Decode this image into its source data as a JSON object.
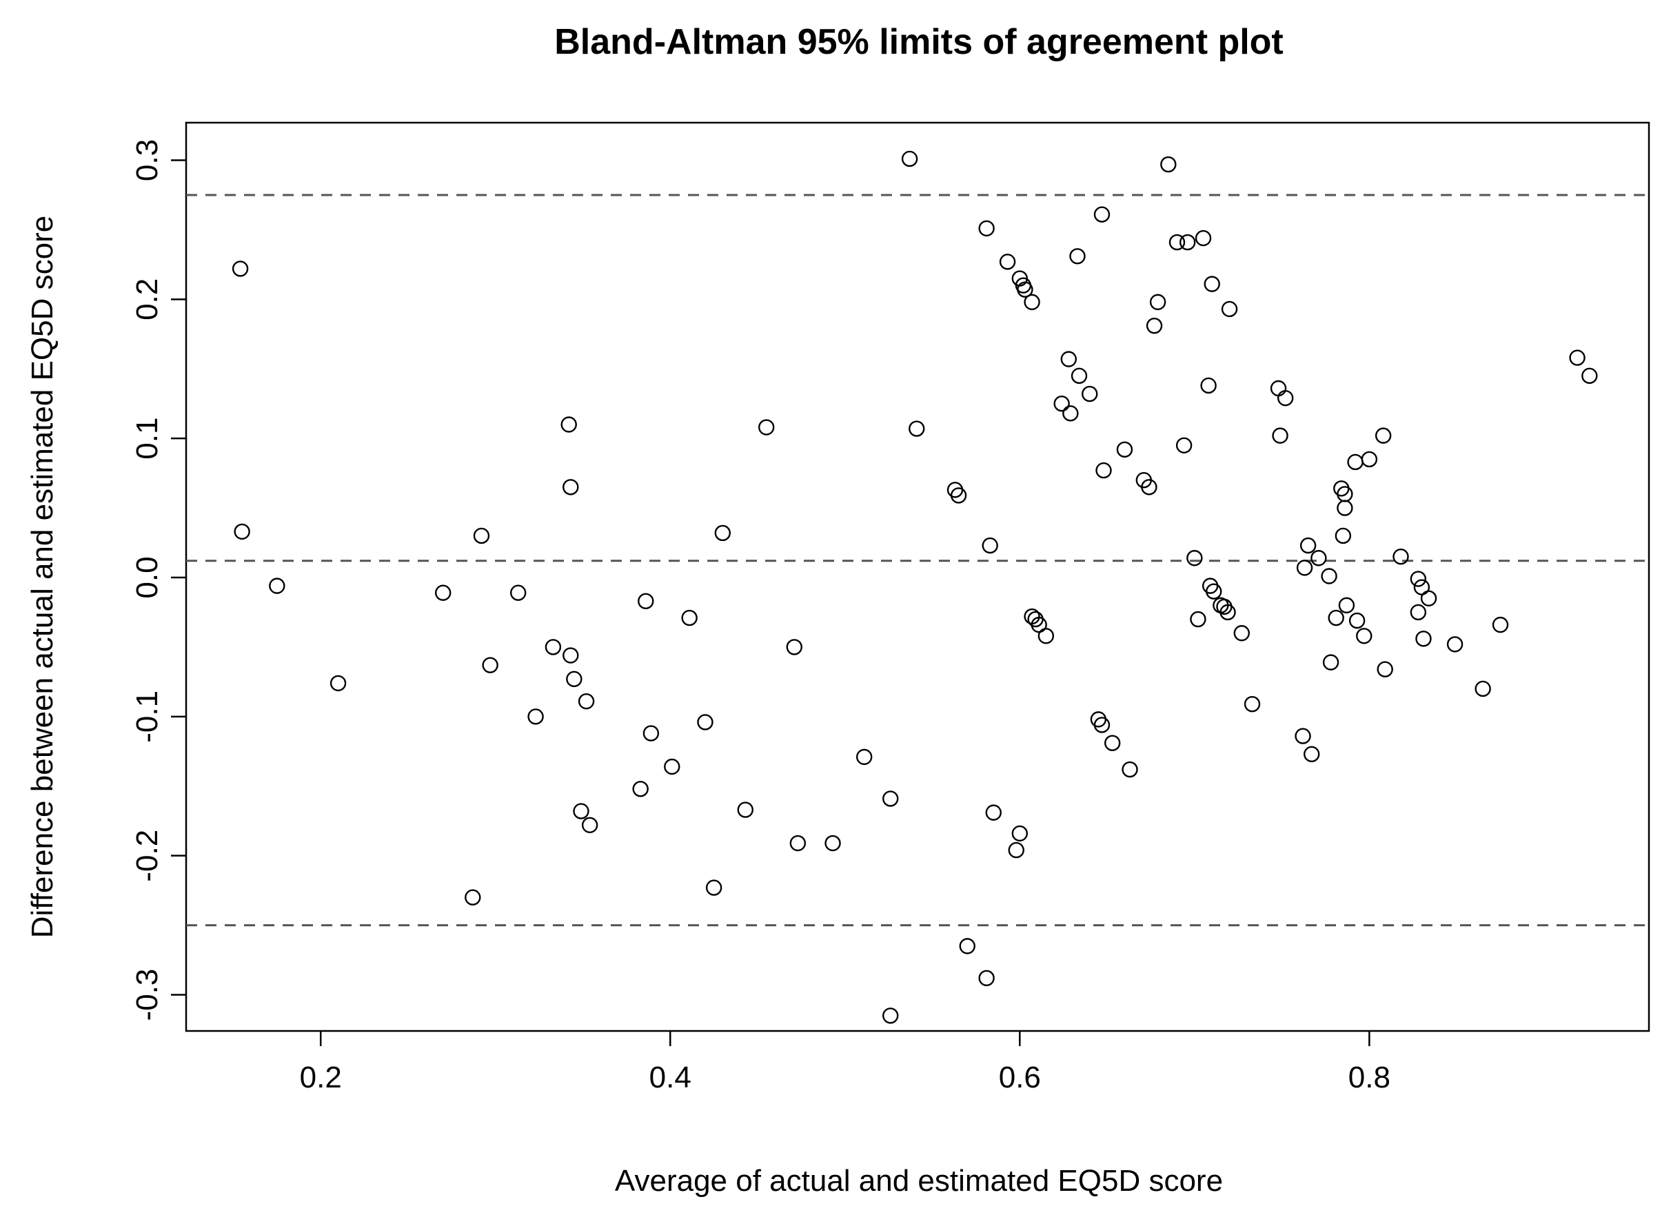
{
  "chart_data": {
    "type": "scatter",
    "title": "Bland-Altman 95% limits of agreement plot",
    "xlabel": "Average of actual and estimated EQ5D score",
    "ylabel": "Difference between actual and estimated EQ5D score",
    "xlim": [
      0.123,
      0.96
    ],
    "ylim": [
      -0.326,
      0.327
    ],
    "xticks": [
      0.2,
      0.4,
      0.6,
      0.8
    ],
    "xtick_labels": [
      "0.2",
      "0.4",
      "0.6",
      "0.8"
    ],
    "yticks": [
      -0.3,
      -0.2,
      -0.1,
      0.0,
      0.1,
      0.2,
      0.3
    ],
    "ytick_labels": [
      "-0.3",
      "-0.2",
      "-0.1",
      "0.0",
      "0.1",
      "0.2",
      "0.3"
    ],
    "reference_lines": [
      {
        "y": 0.275
      },
      {
        "y": 0.012
      },
      {
        "y": -0.25
      }
    ],
    "grid": false,
    "marker": "open-circle",
    "points": [
      [
        0.154,
        0.222
      ],
      [
        0.155,
        0.033
      ],
      [
        0.175,
        -0.006
      ],
      [
        0.21,
        -0.076
      ],
      [
        0.27,
        -0.011
      ],
      [
        0.287,
        -0.23
      ],
      [
        0.292,
        0.03
      ],
      [
        0.297,
        -0.063
      ],
      [
        0.313,
        -0.011
      ],
      [
        0.323,
        -0.1
      ],
      [
        0.333,
        -0.05
      ],
      [
        0.342,
        0.11
      ],
      [
        0.343,
        0.065
      ],
      [
        0.343,
        -0.056
      ],
      [
        0.345,
        -0.073
      ],
      [
        0.349,
        -0.168
      ],
      [
        0.352,
        -0.089
      ],
      [
        0.354,
        -0.178
      ],
      [
        0.383,
        -0.152
      ],
      [
        0.386,
        -0.017
      ],
      [
        0.389,
        -0.112
      ],
      [
        0.401,
        -0.136
      ],
      [
        0.411,
        -0.029
      ],
      [
        0.42,
        -0.104
      ],
      [
        0.425,
        -0.223
      ],
      [
        0.43,
        0.032
      ],
      [
        0.443,
        -0.167
      ],
      [
        0.455,
        0.108
      ],
      [
        0.471,
        -0.05
      ],
      [
        0.473,
        -0.191
      ],
      [
        0.493,
        -0.191
      ],
      [
        0.511,
        -0.129
      ],
      [
        0.526,
        -0.159
      ],
      [
        0.526,
        -0.315
      ],
      [
        0.537,
        0.301
      ],
      [
        0.541,
        0.107
      ],
      [
        0.563,
        0.063
      ],
      [
        0.565,
        0.059
      ],
      [
        0.57,
        -0.265
      ],
      [
        0.581,
        0.251
      ],
      [
        0.581,
        -0.288
      ],
      [
        0.583,
        0.023
      ],
      [
        0.585,
        -0.169
      ],
      [
        0.593,
        0.227
      ],
      [
        0.598,
        -0.196
      ],
      [
        0.6,
        -0.184
      ],
      [
        0.6,
        0.215
      ],
      [
        0.602,
        0.21
      ],
      [
        0.603,
        0.207
      ],
      [
        0.607,
        0.198
      ],
      [
        0.607,
        -0.028
      ],
      [
        0.609,
        -0.03
      ],
      [
        0.611,
        -0.034
      ],
      [
        0.615,
        -0.042
      ],
      [
        0.624,
        0.125
      ],
      [
        0.628,
        0.157
      ],
      [
        0.629,
        0.118
      ],
      [
        0.633,
        0.231
      ],
      [
        0.634,
        0.145
      ],
      [
        0.64,
        0.132
      ],
      [
        0.645,
        -0.102
      ],
      [
        0.647,
        -0.106
      ],
      [
        0.647,
        0.261
      ],
      [
        0.648,
        0.077
      ],
      [
        0.653,
        -0.119
      ],
      [
        0.66,
        0.092
      ],
      [
        0.663,
        -0.138
      ],
      [
        0.671,
        0.07
      ],
      [
        0.674,
        0.065
      ],
      [
        0.677,
        0.181
      ],
      [
        0.679,
        0.198
      ],
      [
        0.685,
        0.297
      ],
      [
        0.69,
        0.241
      ],
      [
        0.694,
        0.095
      ],
      [
        0.696,
        0.241
      ],
      [
        0.7,
        0.014
      ],
      [
        0.702,
        -0.03
      ],
      [
        0.705,
        0.244
      ],
      [
        0.708,
        0.138
      ],
      [
        0.709,
        -0.006
      ],
      [
        0.71,
        0.211
      ],
      [
        0.711,
        -0.01
      ],
      [
        0.715,
        -0.02
      ],
      [
        0.717,
        -0.021
      ],
      [
        0.719,
        -0.025
      ],
      [
        0.72,
        0.193
      ],
      [
        0.727,
        -0.04
      ],
      [
        0.733,
        -0.091
      ],
      [
        0.748,
        0.136
      ],
      [
        0.749,
        0.102
      ],
      [
        0.752,
        0.129
      ],
      [
        0.762,
        -0.114
      ],
      [
        0.763,
        0.007
      ],
      [
        0.765,
        0.023
      ],
      [
        0.767,
        -0.127
      ],
      [
        0.771,
        0.014
      ],
      [
        0.777,
        0.001
      ],
      [
        0.778,
        -0.061
      ],
      [
        0.781,
        -0.029
      ],
      [
        0.784,
        0.064
      ],
      [
        0.785,
        0.03
      ],
      [
        0.786,
        0.06
      ],
      [
        0.786,
        0.05
      ],
      [
        0.787,
        -0.02
      ],
      [
        0.792,
        0.083
      ],
      [
        0.793,
        -0.031
      ],
      [
        0.797,
        -0.042
      ],
      [
        0.8,
        0.085
      ],
      [
        0.808,
        0.102
      ],
      [
        0.809,
        -0.066
      ],
      [
        0.818,
        0.015
      ],
      [
        0.828,
        -0.001
      ],
      [
        0.828,
        -0.025
      ],
      [
        0.83,
        -0.007
      ],
      [
        0.831,
        -0.044
      ],
      [
        0.834,
        -0.015
      ],
      [
        0.849,
        -0.048
      ],
      [
        0.865,
        -0.08
      ],
      [
        0.875,
        -0.034
      ],
      [
        0.919,
        0.158
      ],
      [
        0.926,
        0.145
      ]
    ]
  }
}
